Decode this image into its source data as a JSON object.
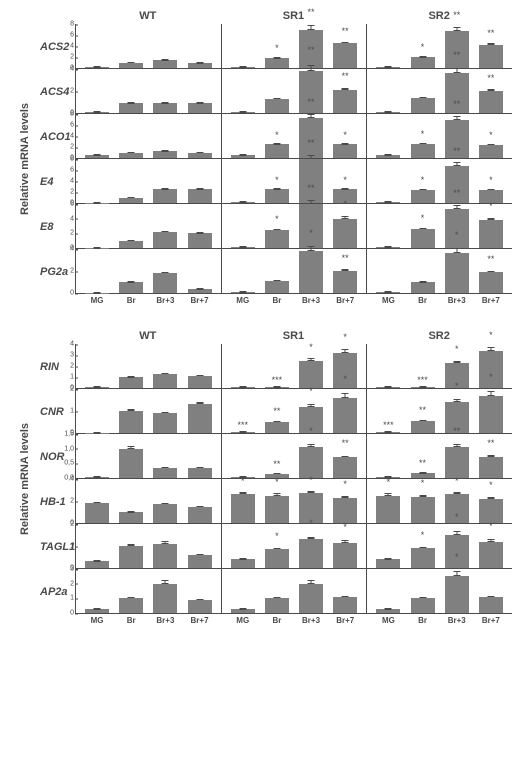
{
  "colors": {
    "bar": "#808080",
    "axis": "#4a4a4a",
    "text": "#4a4a4a",
    "background": "#ffffff"
  },
  "x_categories": [
    "MG",
    "Br",
    "Br+3",
    "Br+7"
  ],
  "genotypes": [
    "WT",
    "SR1",
    "SR2"
  ],
  "ylabel": "Relative mRNA levels",
  "panels": [
    {
      "genes": [
        {
          "name": "ACS2",
          "ymax": 8,
          "ystep": 2,
          "series": [
            {
              "values": [
                0.1,
                1.0,
                1.4,
                0.9
              ],
              "errors": [
                0.05,
                0.15,
                0.2,
                0.15
              ],
              "sig": [
                "",
                "",
                "",
                ""
              ]
            },
            {
              "values": [
                0.1,
                1.8,
                7.0,
                4.5
              ],
              "errors": [
                0.05,
                0.3,
                0.9,
                0.5
              ],
              "sig": [
                "",
                "*",
                "**",
                "**"
              ]
            },
            {
              "values": [
                0.1,
                2.0,
                6.8,
                4.2
              ],
              "errors": [
                0.05,
                0.3,
                0.8,
                0.5
              ],
              "sig": [
                "",
                "*",
                "**",
                "**"
              ]
            }
          ]
        },
        {
          "name": "ACS4",
          "ymax": 4,
          "ystep": 2,
          "series": [
            {
              "values": [
                0.05,
                0.9,
                0.9,
                0.9
              ],
              "errors": [
                0.02,
                0.15,
                0.15,
                0.15
              ],
              "sig": [
                "",
                "",
                "",
                ""
              ]
            },
            {
              "values": [
                0.1,
                1.3,
                3.8,
                2.1
              ],
              "errors": [
                0.05,
                0.2,
                0.6,
                0.3
              ],
              "sig": [
                "",
                "",
                "**",
                "**"
              ]
            },
            {
              "values": [
                0.1,
                1.4,
                3.6,
                2.0
              ],
              "errors": [
                0.05,
                0.2,
                0.5,
                0.3
              ],
              "sig": [
                "",
                "",
                "**",
                "**"
              ]
            }
          ]
        },
        {
          "name": "ACO1",
          "ymax": 8,
          "ystep": 2,
          "series": [
            {
              "values": [
                0.5,
                1.0,
                1.2,
                1.0
              ],
              "errors": [
                0.1,
                0.2,
                0.2,
                0.15
              ],
              "sig": [
                "",
                "",
                "",
                ""
              ]
            },
            {
              "values": [
                0.5,
                2.5,
                7.2,
                2.5
              ],
              "errors": [
                0.1,
                0.3,
                0.8,
                0.3
              ],
              "sig": [
                "",
                "*",
                "**",
                "*"
              ]
            },
            {
              "values": [
                0.5,
                2.6,
                7.0,
                2.4
              ],
              "errors": [
                0.1,
                0.3,
                0.8,
                0.3
              ],
              "sig": [
                "",
                "*",
                "**",
                "*"
              ]
            }
          ]
        },
        {
          "name": "E4",
          "ymax": 8,
          "ystep": 2,
          "series": [
            {
              "values": [
                0.05,
                1.0,
                2.5,
                2.5
              ],
              "errors": [
                0.02,
                0.15,
                0.4,
                0.4
              ],
              "sig": [
                "",
                "",
                "",
                ""
              ]
            },
            {
              "values": [
                0.1,
                2.5,
                8.5,
                2.5
              ],
              "errors": [
                0.05,
                0.3,
                0.8,
                0.3
              ],
              "sig": [
                "",
                "*",
                "**",
                "*"
              ]
            },
            {
              "values": [
                0.1,
                2.4,
                6.8,
                2.4
              ],
              "errors": [
                0.05,
                0.3,
                0.7,
                0.3
              ],
              "sig": [
                "",
                "*",
                "**",
                "*"
              ]
            }
          ]
        },
        {
          "name": "E8",
          "ymax": 6,
          "ystep": 2,
          "series": [
            {
              "values": [
                0.05,
                1.0,
                2.2,
                2.0
              ],
              "errors": [
                0.02,
                0.3,
                0.4,
                0.3
              ],
              "sig": [
                "",
                "",
                "",
                ""
              ]
            },
            {
              "values": [
                0.1,
                2.5,
                6.5,
                4.0
              ],
              "errors": [
                0.05,
                0.3,
                0.6,
                0.5
              ],
              "sig": [
                "",
                "*",
                "**",
                "*"
              ]
            },
            {
              "values": [
                0.1,
                2.6,
                5.3,
                3.8
              ],
              "errors": [
                0.05,
                0.3,
                0.6,
                0.5
              ],
              "sig": [
                "",
                "*",
                "**",
                "*"
              ]
            }
          ]
        },
        {
          "name": "PG2a",
          "ymax": 4,
          "ystep": 2,
          "series": [
            {
              "values": [
                0.02,
                1.0,
                1.8,
                0.4
              ],
              "errors": [
                0.01,
                0.15,
                0.3,
                0.1
              ],
              "sig": [
                "",
                "",
                "",
                ""
              ]
            },
            {
              "values": [
                0.05,
                1.1,
                3.8,
                2.0
              ],
              "errors": [
                0.02,
                0.15,
                0.5,
                0.3
              ],
              "sig": [
                "",
                "",
                "*",
                "**"
              ]
            },
            {
              "values": [
                0.05,
                1.0,
                3.6,
                1.9
              ],
              "errors": [
                0.02,
                0.15,
                0.5,
                0.3
              ],
              "sig": [
                "",
                "",
                "*",
                "**"
              ]
            }
          ]
        }
      ]
    },
    {
      "genes": [
        {
          "name": "RIN",
          "ymax": 4,
          "ystep": 1,
          "series": [
            {
              "values": [
                0.05,
                1.0,
                1.3,
                1.1
              ],
              "errors": [
                0.02,
                0.15,
                0.3,
                0.2
              ],
              "sig": [
                "",
                "",
                "",
                ""
              ]
            },
            {
              "values": [
                0.05,
                0.1,
                2.5,
                3.2
              ],
              "errors": [
                0.02,
                0.05,
                0.3,
                0.4
              ],
              "sig": [
                "",
                "***",
                "*",
                "*"
              ]
            },
            {
              "values": [
                0.05,
                0.1,
                2.3,
                3.4
              ],
              "errors": [
                0.02,
                0.05,
                0.3,
                0.4
              ],
              "sig": [
                "",
                "***",
                "*",
                "*"
              ]
            }
          ]
        },
        {
          "name": "CNR",
          "ymax": 2,
          "ystep": 1,
          "series": [
            {
              "values": [
                0.02,
                1.0,
                0.9,
                1.3
              ],
              "errors": [
                0.01,
                0.15,
                0.15,
                0.2
              ],
              "sig": [
                "",
                "",
                "",
                ""
              ]
            },
            {
              "values": [
                0.05,
                0.5,
                1.2,
                1.6
              ],
              "errors": [
                0.02,
                0.1,
                0.2,
                0.25
              ],
              "sig": [
                "***",
                "**",
                "*",
                "*"
              ]
            },
            {
              "values": [
                0.05,
                0.55,
                1.4,
                1.7
              ],
              "errors": [
                0.02,
                0.1,
                0.2,
                0.25
              ],
              "sig": [
                "***",
                "**",
                "*",
                "*"
              ]
            }
          ]
        },
        {
          "name": "NOR",
          "ymax": 1.5,
          "ystep": 0.5,
          "series": [
            {
              "values": [
                0.02,
                1.0,
                0.35,
                0.35
              ],
              "errors": [
                0.01,
                0.15,
                0.1,
                0.1
              ],
              "sig": [
                "",
                "",
                "",
                ""
              ]
            },
            {
              "values": [
                0.02,
                0.15,
                1.05,
                0.7
              ],
              "errors": [
                0.01,
                0.05,
                0.15,
                0.12
              ],
              "sig": [
                "",
                "**",
                "*",
                "**"
              ]
            },
            {
              "values": [
                0.02,
                0.18,
                1.05,
                0.72
              ],
              "errors": [
                0.01,
                0.05,
                0.15,
                0.12
              ],
              "sig": [
                "",
                "**",
                "**",
                "**"
              ]
            }
          ]
        },
        {
          "name": "HB-1",
          "ymax": 4,
          "ystep": 2,
          "series": [
            {
              "values": [
                1.8,
                1.0,
                1.7,
                1.5
              ],
              "errors": [
                0.2,
                0.15,
                0.2,
                0.2
              ],
              "sig": [
                "",
                "",
                "",
                ""
              ]
            },
            {
              "values": [
                2.6,
                2.5,
                2.7,
                2.3
              ],
              "errors": [
                0.3,
                0.3,
                0.3,
                0.3
              ],
              "sig": [
                "*",
                "*",
                "*",
                "*"
              ]
            },
            {
              "values": [
                2.5,
                2.4,
                2.6,
                2.2
              ],
              "errors": [
                0.3,
                0.3,
                0.3,
                0.3
              ],
              "sig": [
                "*",
                "*",
                "*",
                "*"
              ]
            }
          ]
        },
        {
          "name": "TAGL1",
          "ymax": 2,
          "ystep": 1,
          "series": [
            {
              "values": [
                0.3,
                1.0,
                1.1,
                0.6
              ],
              "errors": [
                0.05,
                0.15,
                0.2,
                0.1
              ],
              "sig": [
                "",
                "",
                "",
                ""
              ]
            },
            {
              "values": [
                0.4,
                0.85,
                1.3,
                1.15
              ],
              "errors": [
                0.08,
                0.15,
                0.2,
                0.2
              ],
              "sig": [
                "",
                "*",
                "*",
                "*"
              ]
            },
            {
              "values": [
                0.4,
                0.9,
                1.5,
                1.2
              ],
              "errors": [
                0.08,
                0.15,
                0.25,
                0.2
              ],
              "sig": [
                "",
                "*",
                "*",
                "*"
              ]
            }
          ]
        },
        {
          "name": "AP2a",
          "ymax": 3,
          "ystep": 1,
          "series": [
            {
              "values": [
                0.3,
                1.0,
                2.0,
                0.9
              ],
              "errors": [
                0.05,
                0.2,
                0.4,
                0.15
              ],
              "sig": [
                "",
                "",
                "",
                ""
              ]
            },
            {
              "values": [
                0.3,
                1.0,
                2.0,
                1.1
              ],
              "errors": [
                0.05,
                0.2,
                0.4,
                0.2
              ],
              "sig": [
                "",
                "",
                "",
                ""
              ]
            },
            {
              "values": [
                0.3,
                1.0,
                2.5,
                1.1
              ],
              "errors": [
                0.05,
                0.2,
                0.4,
                0.2
              ],
              "sig": [
                "",
                "",
                "*",
                ""
              ]
            }
          ]
        }
      ]
    }
  ]
}
